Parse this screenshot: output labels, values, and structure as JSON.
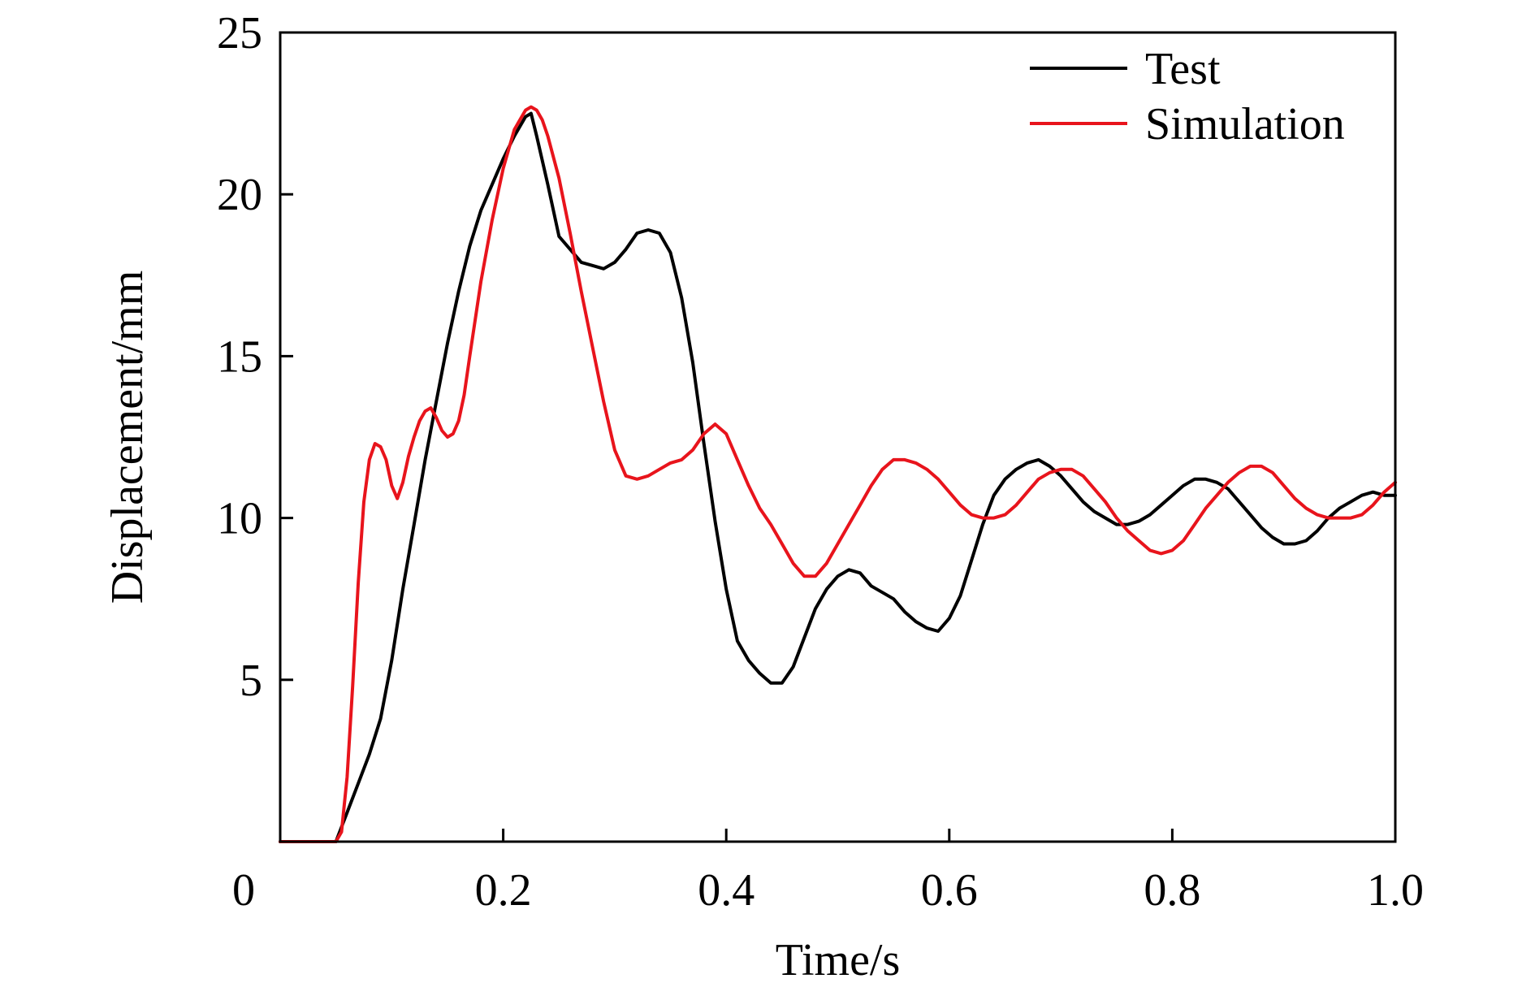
{
  "chart_data": {
    "type": "line",
    "title": "",
    "xlabel": "Time/s",
    "ylabel": "Displacement/mm",
    "xlim": [
      0,
      1.0
    ],
    "ylim": [
      0,
      25
    ],
    "x_ticks": [
      0,
      0.2,
      0.4,
      0.6,
      0.8,
      1.0
    ],
    "x_tick_labels": [
      "0",
      "0.2",
      "0.4",
      "0.6",
      "0.8",
      "1.0"
    ],
    "y_ticks": [
      5,
      10,
      15,
      20,
      25
    ],
    "y_tick_labels": [
      "5",
      "10",
      "15",
      "20",
      "25"
    ],
    "grid": false,
    "legend_position": "top-right",
    "series": [
      {
        "name": "Test",
        "color": "#000000",
        "points": [
          [
            0.0,
            0.0
          ],
          [
            0.02,
            0.0
          ],
          [
            0.045,
            0.0
          ],
          [
            0.05,
            0.0
          ],
          [
            0.06,
            0.9
          ],
          [
            0.07,
            1.8
          ],
          [
            0.08,
            2.7
          ],
          [
            0.09,
            3.8
          ],
          [
            0.1,
            5.6
          ],
          [
            0.11,
            7.8
          ],
          [
            0.12,
            9.8
          ],
          [
            0.13,
            11.8
          ],
          [
            0.14,
            13.6
          ],
          [
            0.15,
            15.4
          ],
          [
            0.16,
            17.0
          ],
          [
            0.17,
            18.4
          ],
          [
            0.18,
            19.5
          ],
          [
            0.19,
            20.3
          ],
          [
            0.2,
            21.1
          ],
          [
            0.21,
            21.8
          ],
          [
            0.22,
            22.4
          ],
          [
            0.225,
            22.5
          ],
          [
            0.23,
            21.8
          ],
          [
            0.24,
            20.3
          ],
          [
            0.25,
            18.7
          ],
          [
            0.26,
            18.3
          ],
          [
            0.27,
            17.9
          ],
          [
            0.28,
            17.8
          ],
          [
            0.29,
            17.7
          ],
          [
            0.3,
            17.9
          ],
          [
            0.31,
            18.3
          ],
          [
            0.32,
            18.8
          ],
          [
            0.33,
            18.9
          ],
          [
            0.34,
            18.8
          ],
          [
            0.35,
            18.2
          ],
          [
            0.36,
            16.8
          ],
          [
            0.37,
            14.8
          ],
          [
            0.38,
            12.3
          ],
          [
            0.39,
            9.9
          ],
          [
            0.4,
            7.8
          ],
          [
            0.41,
            6.2
          ],
          [
            0.42,
            5.6
          ],
          [
            0.43,
            5.2
          ],
          [
            0.44,
            4.9
          ],
          [
            0.45,
            4.9
          ],
          [
            0.46,
            5.4
          ],
          [
            0.47,
            6.3
          ],
          [
            0.48,
            7.2
          ],
          [
            0.49,
            7.8
          ],
          [
            0.5,
            8.2
          ],
          [
            0.51,
            8.4
          ],
          [
            0.52,
            8.3
          ],
          [
            0.53,
            7.9
          ],
          [
            0.54,
            7.7
          ],
          [
            0.55,
            7.5
          ],
          [
            0.56,
            7.1
          ],
          [
            0.57,
            6.8
          ],
          [
            0.58,
            6.6
          ],
          [
            0.59,
            6.5
          ],
          [
            0.6,
            6.9
          ],
          [
            0.61,
            7.6
          ],
          [
            0.62,
            8.7
          ],
          [
            0.63,
            9.8
          ],
          [
            0.64,
            10.7
          ],
          [
            0.65,
            11.2
          ],
          [
            0.66,
            11.5
          ],
          [
            0.67,
            11.7
          ],
          [
            0.68,
            11.8
          ],
          [
            0.69,
            11.6
          ],
          [
            0.7,
            11.3
          ],
          [
            0.71,
            10.9
          ],
          [
            0.72,
            10.5
          ],
          [
            0.73,
            10.2
          ],
          [
            0.74,
            10.0
          ],
          [
            0.75,
            9.8
          ],
          [
            0.76,
            9.8
          ],
          [
            0.77,
            9.9
          ],
          [
            0.78,
            10.1
          ],
          [
            0.79,
            10.4
          ],
          [
            0.8,
            10.7
          ],
          [
            0.81,
            11.0
          ],
          [
            0.82,
            11.2
          ],
          [
            0.83,
            11.2
          ],
          [
            0.84,
            11.1
          ],
          [
            0.85,
            10.9
          ],
          [
            0.86,
            10.5
          ],
          [
            0.87,
            10.1
          ],
          [
            0.88,
            9.7
          ],
          [
            0.89,
            9.4
          ],
          [
            0.9,
            9.2
          ],
          [
            0.91,
            9.2
          ],
          [
            0.92,
            9.3
          ],
          [
            0.93,
            9.6
          ],
          [
            0.94,
            10.0
          ],
          [
            0.95,
            10.3
          ],
          [
            0.96,
            10.5
          ],
          [
            0.97,
            10.7
          ],
          [
            0.98,
            10.8
          ],
          [
            0.99,
            10.7
          ],
          [
            1.0,
            10.7
          ]
        ]
      },
      {
        "name": "Simulation",
        "color": "#e8141c",
        "points": [
          [
            0.0,
            0.0
          ],
          [
            0.02,
            0.0
          ],
          [
            0.045,
            0.0
          ],
          [
            0.05,
            0.0
          ],
          [
            0.055,
            0.3
          ],
          [
            0.06,
            2.0
          ],
          [
            0.065,
            4.8
          ],
          [
            0.07,
            8.0
          ],
          [
            0.075,
            10.5
          ],
          [
            0.08,
            11.8
          ],
          [
            0.085,
            12.3
          ],
          [
            0.09,
            12.2
          ],
          [
            0.095,
            11.8
          ],
          [
            0.1,
            11.0
          ],
          [
            0.105,
            10.6
          ],
          [
            0.11,
            11.1
          ],
          [
            0.115,
            11.9
          ],
          [
            0.12,
            12.5
          ],
          [
            0.125,
            13.0
          ],
          [
            0.13,
            13.3
          ],
          [
            0.135,
            13.4
          ],
          [
            0.14,
            13.1
          ],
          [
            0.145,
            12.7
          ],
          [
            0.15,
            12.5
          ],
          [
            0.155,
            12.6
          ],
          [
            0.16,
            13.0
          ],
          [
            0.165,
            13.8
          ],
          [
            0.17,
            15.0
          ],
          [
            0.18,
            17.3
          ],
          [
            0.19,
            19.2
          ],
          [
            0.2,
            20.8
          ],
          [
            0.21,
            22.0
          ],
          [
            0.22,
            22.6
          ],
          [
            0.225,
            22.7
          ],
          [
            0.23,
            22.6
          ],
          [
            0.235,
            22.3
          ],
          [
            0.24,
            21.8
          ],
          [
            0.25,
            20.5
          ],
          [
            0.26,
            18.8
          ],
          [
            0.27,
            17.0
          ],
          [
            0.28,
            15.3
          ],
          [
            0.29,
            13.6
          ],
          [
            0.3,
            12.1
          ],
          [
            0.31,
            11.3
          ],
          [
            0.32,
            11.2
          ],
          [
            0.33,
            11.3
          ],
          [
            0.34,
            11.5
          ],
          [
            0.35,
            11.7
          ],
          [
            0.36,
            11.8
          ],
          [
            0.37,
            12.1
          ],
          [
            0.38,
            12.6
          ],
          [
            0.39,
            12.9
          ],
          [
            0.4,
            12.6
          ],
          [
            0.41,
            11.8
          ],
          [
            0.42,
            11.0
          ],
          [
            0.43,
            10.3
          ],
          [
            0.44,
            9.8
          ],
          [
            0.45,
            9.2
          ],
          [
            0.46,
            8.6
          ],
          [
            0.47,
            8.2
          ],
          [
            0.48,
            8.2
          ],
          [
            0.49,
            8.6
          ],
          [
            0.5,
            9.2
          ],
          [
            0.51,
            9.8
          ],
          [
            0.52,
            10.4
          ],
          [
            0.53,
            11.0
          ],
          [
            0.54,
            11.5
          ],
          [
            0.55,
            11.8
          ],
          [
            0.56,
            11.8
          ],
          [
            0.57,
            11.7
          ],
          [
            0.58,
            11.5
          ],
          [
            0.59,
            11.2
          ],
          [
            0.6,
            10.8
          ],
          [
            0.61,
            10.4
          ],
          [
            0.62,
            10.1
          ],
          [
            0.63,
            10.0
          ],
          [
            0.64,
            10.0
          ],
          [
            0.65,
            10.1
          ],
          [
            0.66,
            10.4
          ],
          [
            0.67,
            10.8
          ],
          [
            0.68,
            11.2
          ],
          [
            0.69,
            11.4
          ],
          [
            0.7,
            11.5
          ],
          [
            0.71,
            11.5
          ],
          [
            0.72,
            11.3
          ],
          [
            0.73,
            10.9
          ],
          [
            0.74,
            10.5
          ],
          [
            0.75,
            10.0
          ],
          [
            0.76,
            9.6
          ],
          [
            0.77,
            9.3
          ],
          [
            0.78,
            9.0
          ],
          [
            0.79,
            8.9
          ],
          [
            0.8,
            9.0
          ],
          [
            0.81,
            9.3
          ],
          [
            0.82,
            9.8
          ],
          [
            0.83,
            10.3
          ],
          [
            0.84,
            10.7
          ],
          [
            0.85,
            11.1
          ],
          [
            0.86,
            11.4
          ],
          [
            0.87,
            11.6
          ],
          [
            0.88,
            11.6
          ],
          [
            0.89,
            11.4
          ],
          [
            0.9,
            11.0
          ],
          [
            0.91,
            10.6
          ],
          [
            0.92,
            10.3
          ],
          [
            0.93,
            10.1
          ],
          [
            0.94,
            10.0
          ],
          [
            0.95,
            10.0
          ],
          [
            0.96,
            10.0
          ],
          [
            0.97,
            10.1
          ],
          [
            0.98,
            10.4
          ],
          [
            0.99,
            10.8
          ],
          [
            1.0,
            11.1
          ]
        ]
      }
    ]
  }
}
